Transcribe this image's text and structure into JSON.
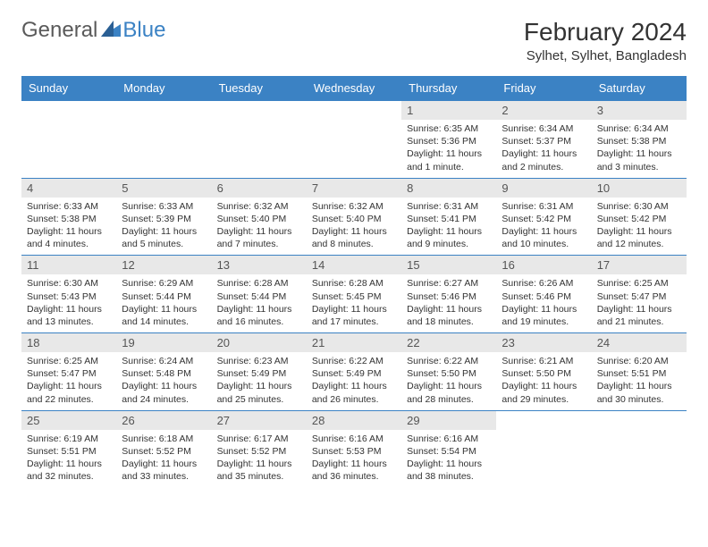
{
  "brand": {
    "part1": "General",
    "part2": "Blue"
  },
  "title": "February 2024",
  "location": "Sylhet, Sylhet, Bangladesh",
  "colors": {
    "header_bg": "#3b82c4",
    "header_text": "#ffffff",
    "daynum_bg": "#e8e8e8",
    "text": "#333333",
    "border": "#3b82c4"
  },
  "weekdays": [
    "Sunday",
    "Monday",
    "Tuesday",
    "Wednesday",
    "Thursday",
    "Friday",
    "Saturday"
  ],
  "weeks": [
    [
      null,
      null,
      null,
      null,
      {
        "n": "1",
        "sr": "6:35 AM",
        "ss": "5:36 PM",
        "dl": "11 hours and 1 minute."
      },
      {
        "n": "2",
        "sr": "6:34 AM",
        "ss": "5:37 PM",
        "dl": "11 hours and 2 minutes."
      },
      {
        "n": "3",
        "sr": "6:34 AM",
        "ss": "5:38 PM",
        "dl": "11 hours and 3 minutes."
      }
    ],
    [
      {
        "n": "4",
        "sr": "6:33 AM",
        "ss": "5:38 PM",
        "dl": "11 hours and 4 minutes."
      },
      {
        "n": "5",
        "sr": "6:33 AM",
        "ss": "5:39 PM",
        "dl": "11 hours and 5 minutes."
      },
      {
        "n": "6",
        "sr": "6:32 AM",
        "ss": "5:40 PM",
        "dl": "11 hours and 7 minutes."
      },
      {
        "n": "7",
        "sr": "6:32 AM",
        "ss": "5:40 PM",
        "dl": "11 hours and 8 minutes."
      },
      {
        "n": "8",
        "sr": "6:31 AM",
        "ss": "5:41 PM",
        "dl": "11 hours and 9 minutes."
      },
      {
        "n": "9",
        "sr": "6:31 AM",
        "ss": "5:42 PM",
        "dl": "11 hours and 10 minutes."
      },
      {
        "n": "10",
        "sr": "6:30 AM",
        "ss": "5:42 PM",
        "dl": "11 hours and 12 minutes."
      }
    ],
    [
      {
        "n": "11",
        "sr": "6:30 AM",
        "ss": "5:43 PM",
        "dl": "11 hours and 13 minutes."
      },
      {
        "n": "12",
        "sr": "6:29 AM",
        "ss": "5:44 PM",
        "dl": "11 hours and 14 minutes."
      },
      {
        "n": "13",
        "sr": "6:28 AM",
        "ss": "5:44 PM",
        "dl": "11 hours and 16 minutes."
      },
      {
        "n": "14",
        "sr": "6:28 AM",
        "ss": "5:45 PM",
        "dl": "11 hours and 17 minutes."
      },
      {
        "n": "15",
        "sr": "6:27 AM",
        "ss": "5:46 PM",
        "dl": "11 hours and 18 minutes."
      },
      {
        "n": "16",
        "sr": "6:26 AM",
        "ss": "5:46 PM",
        "dl": "11 hours and 19 minutes."
      },
      {
        "n": "17",
        "sr": "6:25 AM",
        "ss": "5:47 PM",
        "dl": "11 hours and 21 minutes."
      }
    ],
    [
      {
        "n": "18",
        "sr": "6:25 AM",
        "ss": "5:47 PM",
        "dl": "11 hours and 22 minutes."
      },
      {
        "n": "19",
        "sr": "6:24 AM",
        "ss": "5:48 PM",
        "dl": "11 hours and 24 minutes."
      },
      {
        "n": "20",
        "sr": "6:23 AM",
        "ss": "5:49 PM",
        "dl": "11 hours and 25 minutes."
      },
      {
        "n": "21",
        "sr": "6:22 AM",
        "ss": "5:49 PM",
        "dl": "11 hours and 26 minutes."
      },
      {
        "n": "22",
        "sr": "6:22 AM",
        "ss": "5:50 PM",
        "dl": "11 hours and 28 minutes."
      },
      {
        "n": "23",
        "sr": "6:21 AM",
        "ss": "5:50 PM",
        "dl": "11 hours and 29 minutes."
      },
      {
        "n": "24",
        "sr": "6:20 AM",
        "ss": "5:51 PM",
        "dl": "11 hours and 30 minutes."
      }
    ],
    [
      {
        "n": "25",
        "sr": "6:19 AM",
        "ss": "5:51 PM",
        "dl": "11 hours and 32 minutes."
      },
      {
        "n": "26",
        "sr": "6:18 AM",
        "ss": "5:52 PM",
        "dl": "11 hours and 33 minutes."
      },
      {
        "n": "27",
        "sr": "6:17 AM",
        "ss": "5:52 PM",
        "dl": "11 hours and 35 minutes."
      },
      {
        "n": "28",
        "sr": "6:16 AM",
        "ss": "5:53 PM",
        "dl": "11 hours and 36 minutes."
      },
      {
        "n": "29",
        "sr": "6:16 AM",
        "ss": "5:54 PM",
        "dl": "11 hours and 38 minutes."
      },
      null,
      null
    ]
  ],
  "labels": {
    "sunrise": "Sunrise:",
    "sunset": "Sunset:",
    "daylight": "Daylight:"
  }
}
